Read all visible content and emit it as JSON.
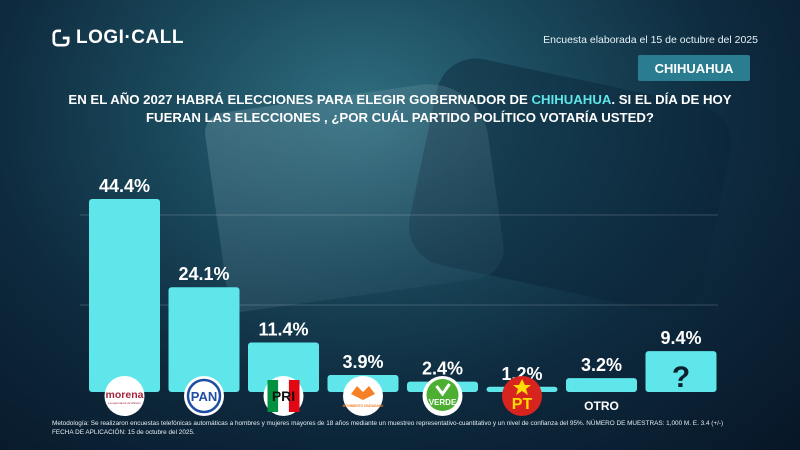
{
  "header": {
    "brand": "LOGI·CALL",
    "date_text": "Encuesta elaborada el 15 de octubre del 2025",
    "region": "CHIHUAHUA"
  },
  "question": {
    "part1": "EN EL AÑO 2027 HABRÁ ELECCIONES PARA ELEGIR GOBERNADOR DE ",
    "highlight": "CHIHUAHUA",
    "part2": ".  SI EL DÍA DE HOY FUERAN LAS ELECCIONES , ¿POR CUÁL PARTIDO POLÍTICO VOTARÍA USTED?"
  },
  "chart_data": {
    "type": "bar",
    "categories": [
      "morena",
      "PAN",
      "PRI",
      "MOVIMIENTO CIUDADANO",
      "VERDE",
      "PT",
      "OTRO",
      "?"
    ],
    "values": [
      44.4,
      24.1,
      11.4,
      3.9,
      2.4,
      1.2,
      3.2,
      9.4
    ],
    "value_labels": [
      "44.4%",
      "24.1%",
      "11.4%",
      "3.9%",
      "2.4%",
      "1.2%",
      "3.2%",
      "9.4%"
    ],
    "ylim": [
      0,
      50
    ],
    "bar_color": "#5ee6ea",
    "grid": true
  },
  "logos": {
    "morena": {
      "text": "morena",
      "sub": "La esperanza de México",
      "color": "#a3243b"
    },
    "pan": {
      "text": "PAN",
      "color": "#1f4fa3"
    },
    "pri": {
      "text": "PRI",
      "colors": [
        "#00923f",
        "#ffffff",
        "#e30613"
      ]
    },
    "mc": {
      "text": "MOVIMIENTO CIUDADANO",
      "color": "#f58025"
    },
    "verde": {
      "text": "VERDE",
      "color": "#4caf32"
    },
    "pt": {
      "text": "PT",
      "color": "#d8241f",
      "text_color": "#ffdd00"
    },
    "otro": {
      "text": "OTRO"
    },
    "unknown": {
      "text": "?"
    }
  },
  "methodology": {
    "line1": "Metodología: Se realizaron encuestas telefónicas automáticas a hombres y mujeres mayores de 18 años mediante un muestreo representativo-cuantitativo y un nivel de confianza del 95%. NÚMERO DE MUESTRAS: 1,000 M. E. 3.4 (+/-)",
    "line2": "FECHA DE APLICACIÓN: 15 de octubre del 2025."
  }
}
